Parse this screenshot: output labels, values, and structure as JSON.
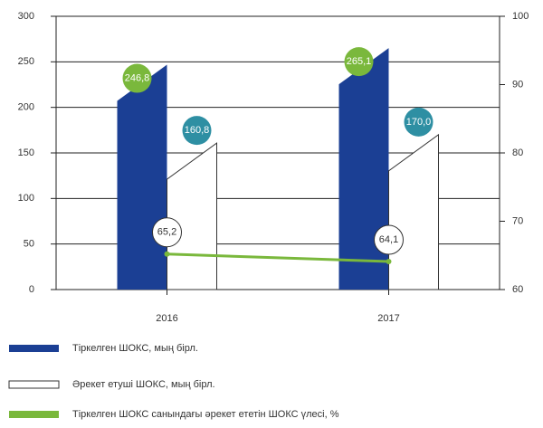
{
  "chart_data": {
    "type": "bar",
    "categories": [
      "2016",
      "2017"
    ],
    "series": [
      {
        "name": "Тіркелген ШОКС, мың бірл.",
        "color": "#1b3f94",
        "values": [
          246.8,
          265.1
        ],
        "value_labels": [
          "246,8",
          "265,1"
        ],
        "label_color": "#7ab83c"
      },
      {
        "name": "Әрекет етуші ШОКС, мың бірл.",
        "color": "#ffffff",
        "values": [
          160.8,
          170.0
        ],
        "value_labels": [
          "160,8",
          "170,0"
        ],
        "label_color": "#2e8fa3"
      },
      {
        "name": "Тіркелген ШОКС санындағы әрекет ететін ШОКС үлесі, %",
        "color": "#7ab83c",
        "type": "line",
        "axis": "y2",
        "values": [
          65.2,
          64.1
        ],
        "value_labels": [
          "65,2",
          "64,1"
        ],
        "label_color": "#ffffff"
      }
    ],
    "ylim": [
      0,
      300
    ],
    "yticks": [
      0,
      50,
      100,
      150,
      200,
      250,
      300
    ],
    "y2lim": [
      60,
      100
    ],
    "y2ticks": [
      60,
      70,
      80,
      90,
      100
    ],
    "grid": true
  }
}
